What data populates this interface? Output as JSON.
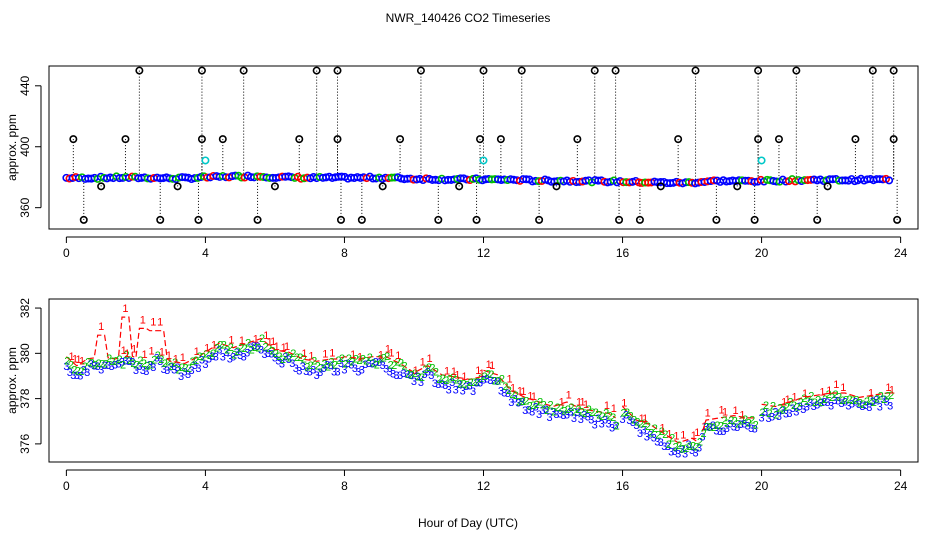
{
  "title": "NWR_140426  CO2 Timeseries",
  "xlabel": "Hour of Day (UTC)",
  "colors": {
    "flag1": "#ff0000",
    "flag2": "#00c000",
    "flag3": "#0000ff",
    "cyan": "#00c8c8",
    "black": "#000000"
  },
  "chart_data": [
    {
      "type": "scatter",
      "ylabel": "approx. ppm",
      "xlim": [
        -0.5,
        24.5
      ],
      "ylim": [
        346,
        453
      ],
      "xticks": [
        0,
        4,
        8,
        12,
        16,
        20,
        24
      ],
      "yticks": [
        360,
        400,
        440
      ],
      "baseline": {
        "x": [
          0,
          0.5,
          1,
          1.5,
          2,
          2.5,
          3,
          3.5,
          4,
          4.5,
          5,
          5.5,
          6,
          6.5,
          7,
          7.5,
          8,
          8.5,
          9,
          9.5,
          10,
          10.5,
          11,
          11.5,
          12,
          12.5,
          13,
          13.5,
          14,
          14.5,
          15,
          15.5,
          16,
          16.5,
          17,
          17.5,
          18,
          18.5,
          19,
          19.5,
          20,
          20.5,
          21,
          21.5,
          22,
          22.5,
          23,
          23.5,
          23.7
        ],
        "y": [
          379.5,
          379.5,
          379.6,
          379.8,
          379.7,
          379.6,
          379.3,
          379.4,
          379.9,
          380.3,
          380.5,
          380.6,
          380.1,
          379.8,
          379.5,
          379.6,
          379.7,
          379.6,
          379.7,
          379.4,
          378.9,
          378.8,
          378.6,
          378.6,
          378.5,
          378.4,
          378.2,
          377.8,
          377.7,
          377.6,
          377.4,
          377.3,
          377.1,
          376.8,
          376.6,
          376.4,
          376.4,
          377.4,
          377.6,
          377.5,
          377.5,
          377.8,
          378.0,
          378.2,
          378.3,
          378.1,
          378.3,
          378.4,
          378.5
        ]
      },
      "outliers_high_x": [
        2.1,
        3.9,
        5.1,
        7.2,
        7.8,
        10.2,
        12.0,
        13.1,
        15.2,
        15.8,
        18.1,
        19.9,
        21.0,
        23.2,
        23.8
      ],
      "outliers_high_y": 450,
      "outliers_low_x": [
        0.5,
        2.7,
        3.8,
        5.5,
        7.9,
        8.5,
        10.7,
        11.8,
        13.6,
        15.9,
        16.5,
        18.7,
        19.8,
        21.6,
        23.9
      ],
      "outliers_low_y": 352,
      "outliers_mid_x": [
        0.2,
        1.7,
        3.9,
        4.5,
        6.7,
        7.8,
        9.6,
        11.9,
        12.5,
        14.7,
        17.6,
        19.9,
        20.5,
        22.7,
        23.8
      ],
      "outliers_mid_y": 405,
      "minor_x": [
        1.0,
        3.2,
        6.0,
        9.1,
        11.3,
        14.1,
        17.1,
        19.3,
        21.9
      ],
      "minor_y": 374,
      "cyan_x": [
        4.0,
        12.0,
        20.0
      ],
      "cyan_y": 391
    },
    {
      "type": "scatter",
      "ylabel": "approx. ppm",
      "xlim": [
        -0.5,
        24.5
      ],
      "ylim": [
        375.2,
        382.4
      ],
      "xticks": [
        0,
        4,
        8,
        12,
        16,
        20,
        24
      ],
      "yticks": [
        376,
        378,
        380,
        382
      ],
      "series": [
        {
          "name": "1",
          "color": "#ff0000"
        },
        {
          "name": "2",
          "color": "#00c000"
        },
        {
          "name": "3",
          "color": "#0000ff"
        }
      ],
      "profile": {
        "x": [
          0,
          0.3,
          0.6,
          1.0,
          1.4,
          1.8,
          2.2,
          2.6,
          3.0,
          3.4,
          3.8,
          4.0,
          4.4,
          4.8,
          5.2,
          5.6,
          6.0,
          6.4,
          6.8,
          7.2,
          7.6,
          7.8,
          8.0,
          8.4,
          8.8,
          9.2,
          9.6,
          10.0,
          10.4,
          10.8,
          11.2,
          11.6,
          11.9,
          12.0,
          12.4,
          12.8,
          13.2,
          13.6,
          14.0,
          14.4,
          14.8,
          15.2,
          15.6,
          15.8,
          16.0,
          16.4,
          16.8,
          17.2,
          17.6,
          18.0,
          18.2,
          18.4,
          18.8,
          19.2,
          19.6,
          19.8,
          20.0,
          20.4,
          20.8,
          21.2,
          21.6,
          22.0,
          22.4,
          22.8,
          23.2,
          23.6,
          23.75
        ],
        "y": [
          379.6,
          379.2,
          379.5,
          379.6,
          379.5,
          379.7,
          379.4,
          379.8,
          379.4,
          379.3,
          379.6,
          379.8,
          380.2,
          380.0,
          380.2,
          380.4,
          379.9,
          379.8,
          379.5,
          379.4,
          379.5,
          379.5,
          379.6,
          379.5,
          379.6,
          379.6,
          379.3,
          378.9,
          379.2,
          378.8,
          378.7,
          378.6,
          378.7,
          379.0,
          378.8,
          378.1,
          377.8,
          377.6,
          377.4,
          377.6,
          377.3,
          377.2,
          377.1,
          376.9,
          377.4,
          376.8,
          376.6,
          376.2,
          375.8,
          376.0,
          375.8,
          376.8,
          376.9,
          377.0,
          376.9,
          376.9,
          377.5,
          377.4,
          377.6,
          377.8,
          377.9,
          378.0,
          378.0,
          377.8,
          377.9,
          378.0,
          378.0
        ]
      },
      "spikes_x": [
        1.0,
        1.7,
        2.2,
        2.5,
        2.7
      ],
      "spikes_y": [
        381.2,
        382.0,
        381.5,
        381.4,
        381.4
      ],
      "labels": {
        "one": "1",
        "two": "2",
        "three": "3"
      }
    }
  ]
}
